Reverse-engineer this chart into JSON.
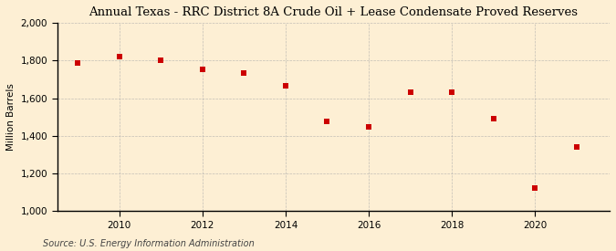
{
  "title": "Annual Texas - RRC District 8A Crude Oil + Lease Condensate Proved Reserves",
  "ylabel": "Million Barrels",
  "source": "Source: U.S. Energy Information Administration",
  "years": [
    2009,
    2010,
    2011,
    2012,
    2013,
    2014,
    2015,
    2016,
    2017,
    2018,
    2019,
    2020,
    2021
  ],
  "values": [
    1790,
    1820,
    1800,
    1755,
    1735,
    1665,
    1475,
    1450,
    1630,
    1630,
    1490,
    1120,
    1340
  ],
  "marker_color": "#cc0000",
  "marker": "s",
  "marker_size": 4,
  "background_color": "#fdefd4",
  "plot_background_color": "#fdefd4",
  "grid_color": "#aaaaaa",
  "grid_style": "--",
  "xlim": [
    2008.5,
    2021.8
  ],
  "ylim": [
    1000,
    2000
  ],
  "yticks": [
    1000,
    1200,
    1400,
    1600,
    1800,
    2000
  ],
  "xticks": [
    2010,
    2012,
    2014,
    2016,
    2018,
    2020
  ],
  "title_fontsize": 9.5,
  "label_fontsize": 7.5,
  "tick_fontsize": 7.5,
  "source_fontsize": 7
}
